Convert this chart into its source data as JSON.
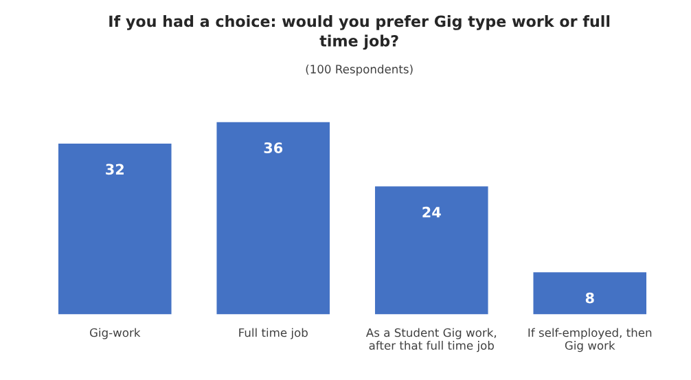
{
  "chart_data": {
    "type": "bar",
    "title": "If you had a choice: would you prefer Gig type work or full\ntime job?",
    "subtitle": "(100 Respondents)",
    "categories": [
      "Gig-work",
      "Full time job",
      "As a Student Gig work,\nafter that full time job",
      "If self-employed, then\nGig work"
    ],
    "values": [
      32,
      36,
      24,
      8
    ],
    "color": "#4472c4",
    "data_labels": true,
    "grid": false,
    "legend": false
  }
}
